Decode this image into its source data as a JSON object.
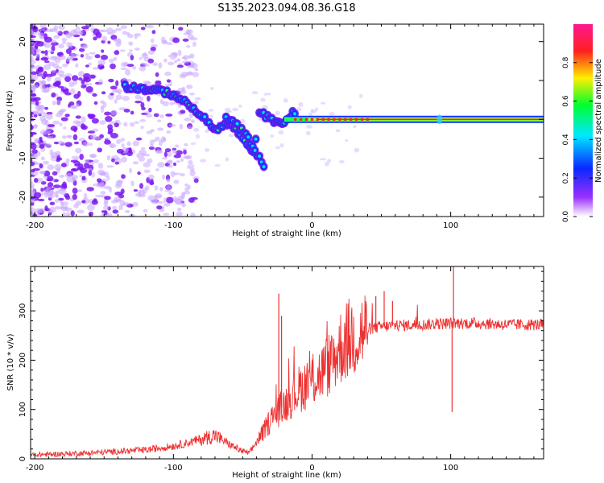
{
  "title": "S135.2023.094.08.36.G18",
  "chart_data": [
    {
      "type": "heatmap",
      "xlabel": "Height of straight line (km)",
      "ylabel": "Frequency (Hz)",
      "xlim": [
        -203,
        167
      ],
      "ylim": [
        -25,
        24.5
      ],
      "x_ticks": [
        -200,
        -100,
        0,
        100
      ],
      "y_ticks": [
        -20,
        -10,
        0,
        10,
        20
      ],
      "colorbar": {
        "label": "Normalized spectral amplitude",
        "range": [
          0,
          1
        ],
        "ticks": [
          0.0,
          0.2,
          0.4,
          0.6,
          0.8
        ],
        "colors": [
          "#ffffff",
          "#9a30ff",
          "#0a28ff",
          "#00e8ff",
          "#00ff30",
          "#ffee00",
          "#ff2020",
          "#ff1890"
        ]
      },
      "ridge": {
        "x": [
          -135,
          -125,
          -115,
          -105,
          -98,
          -92,
          -85,
          -78,
          -72,
          -66,
          -60,
          -54,
          -48,
          -42,
          -38,
          -34,
          -30,
          -26,
          -22,
          -18,
          -14,
          -10,
          0,
          20,
          40,
          60,
          80,
          92,
          110,
          140,
          167
        ],
        "y": [
          8.5,
          8,
          7.5,
          7,
          6,
          4.5,
          2.5,
          0.5,
          -2.5,
          -2,
          -1,
          -3,
          -6,
          -9,
          2,
          1,
          0,
          -0.5,
          -1,
          0,
          1.5,
          0.5,
          0,
          0,
          0,
          0,
          0,
          0,
          0,
          0,
          0
        ]
      },
      "branch": {
        "x": [
          -62,
          -56,
          -50,
          -44,
          -38,
          -34
        ],
        "y": [
          0.5,
          -1,
          -3,
          -6,
          -10,
          -12
        ]
      },
      "line_band": {
        "x_start": -20,
        "x_end": 167,
        "y": 0
      }
    },
    {
      "type": "line",
      "xlabel": "Height of straight line (km)",
      "ylabel": "SNR (10 * v/v)",
      "xlim": [
        -203,
        167
      ],
      "ylim": [
        0,
        390
      ],
      "x_ticks": [
        -200,
        -100,
        0,
        100
      ],
      "y_ticks": [
        0,
        100,
        200,
        300
      ],
      "series": [
        {
          "color": "#ee3030",
          "x": [
            -203,
            -180,
            -160,
            -140,
            -120,
            -110,
            -100,
            -90,
            -80,
            -70,
            -60,
            -50,
            -45,
            -40,
            -35,
            -30,
            -25,
            -20,
            -15,
            -10,
            -5,
            0,
            5,
            10,
            15,
            20,
            25,
            30,
            40,
            50,
            60,
            80,
            100,
            120,
            140,
            167
          ],
          "y": [
            8,
            10,
            12,
            15,
            18,
            22,
            26,
            32,
            40,
            48,
            30,
            15,
            12,
            35,
            55,
            80,
            95,
            110,
            125,
            140,
            150,
            160,
            170,
            185,
            200,
            225,
            240,
            250,
            262,
            268,
            270,
            272,
            275,
            275,
            272,
            272
          ]
        }
      ],
      "spikes": [
        {
          "x": -24,
          "y": 335
        },
        {
          "x": -22,
          "y": 290
        },
        {
          "x": 46,
          "y": 330
        },
        {
          "x": 52,
          "y": 340
        },
        {
          "x": 58,
          "y": 320
        },
        {
          "x": 102,
          "y": 395
        }
      ],
      "dips": [
        {
          "x": 101,
          "y": 95
        }
      ]
    }
  ]
}
